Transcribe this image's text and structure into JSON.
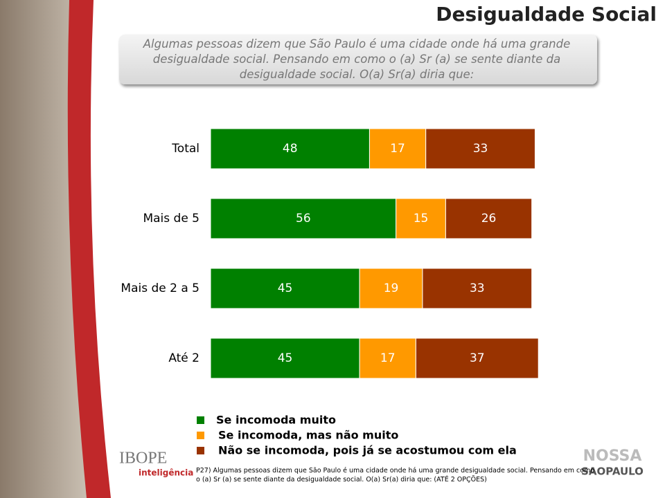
{
  "chart_data": {
    "type": "bar",
    "orientation": "horizontal",
    "stacked": true,
    "title": "Desigualdade Social",
    "subtitle": "Algumas pessoas dizem que São Paulo é uma cidade onde há uma grande desigualdade social. Pensando em como o (a) Sr (a) se sente diante da desigualdade social. O(a) Sr(a) diria que:",
    "categories": [
      "Total",
      "Mais de 5",
      "Mais de 2 a 5",
      "Até 2"
    ],
    "series": [
      {
        "name": "Se incomoda muito",
        "color": "#008000",
        "values": [
          48,
          56,
          45,
          45
        ]
      },
      {
        "name": "Se incomoda, mas não muito",
        "color": "#ff9900",
        "values": [
          17,
          15,
          19,
          17
        ]
      },
      {
        "name": "Não se incomoda, pois já se acostumou com ela",
        "color": "#993300",
        "values": [
          33,
          26,
          33,
          37
        ]
      }
    ],
    "xlim": [
      0,
      100
    ],
    "note": "P27) Algumas pessoas dizem que São Paulo é uma cidade onde há uma grande desigualdade social. Pensando em como o (a) Sr (a) se sente diante da desigualdade social. O(a) Sr(a) diria que: (ATÉ 2 OPÇÕES)"
  },
  "logos": {
    "ibope": "IBOPE",
    "ibope_sub": "inteligência",
    "nossa": "NOSSA",
    "saopaulo": "SAOPAULO"
  }
}
